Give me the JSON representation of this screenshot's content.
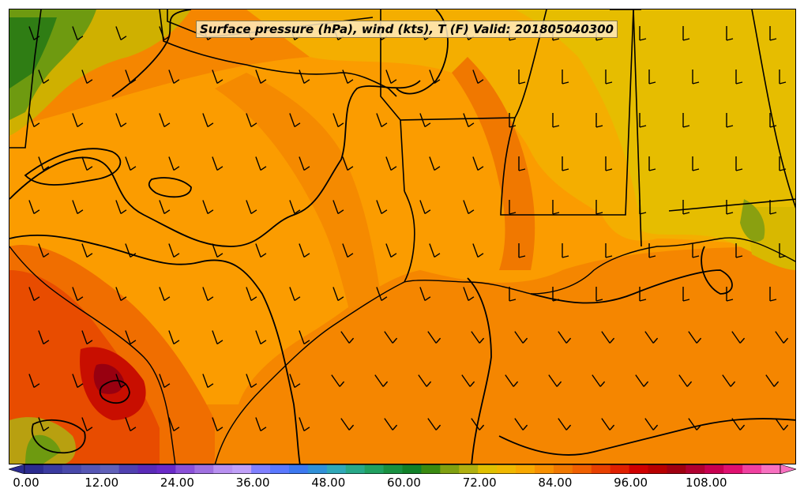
{
  "map": {
    "title": "Surface pressure (hPa), wind (kts), T (F) Valid: 201805040300",
    "region": "Texas, Louisiana, Mississippi, Alabama coast and Gulf of Mexico",
    "fields": [
      "surface pressure contours",
      "wind barbs",
      "temperature shading"
    ],
    "wind_direction_over_gulf": "southerly to southeasterly",
    "wind_direction_inland_east": "southerly"
  },
  "colorbar": {
    "min": 0,
    "max": 120,
    "step": 3,
    "extend": "both",
    "tick_labels": [
      "0.00",
      "12.00",
      "24.00",
      "36.00",
      "48.00",
      "60.00",
      "72.00",
      "84.00",
      "96.00",
      "108.00"
    ],
    "colors": [
      "#2b2b8f",
      "#3a3aa0",
      "#4848aa",
      "#5656b4",
      "#6060b8",
      "#5040b0",
      "#5a2ab8",
      "#6a2ac8",
      "#8a50d8",
      "#a070e0",
      "#b890f0",
      "#c0a0f8",
      "#8080ff",
      "#5a78ff",
      "#3c78f0",
      "#3090d8",
      "#30a8b8",
      "#28a888",
      "#20a060",
      "#189040",
      "#108028",
      "#3a8a10",
      "#80a010",
      "#b0b010",
      "#e0c000",
      "#f0b800",
      "#f8a800",
      "#f89000",
      "#f07800",
      "#f06000",
      "#e84000",
      "#e02000",
      "#d00000",
      "#b80000",
      "#a00010",
      "#b00030",
      "#c80050",
      "#e01070",
      "#f040a0",
      "#f870c0"
    ]
  },
  "legend_colors": {
    "warm_gulf": "#f78a00",
    "inland": "#fb9f00",
    "hot_core": "#d81400",
    "cool_north": "#e8c000",
    "terrain_green": "#3b8f18"
  }
}
